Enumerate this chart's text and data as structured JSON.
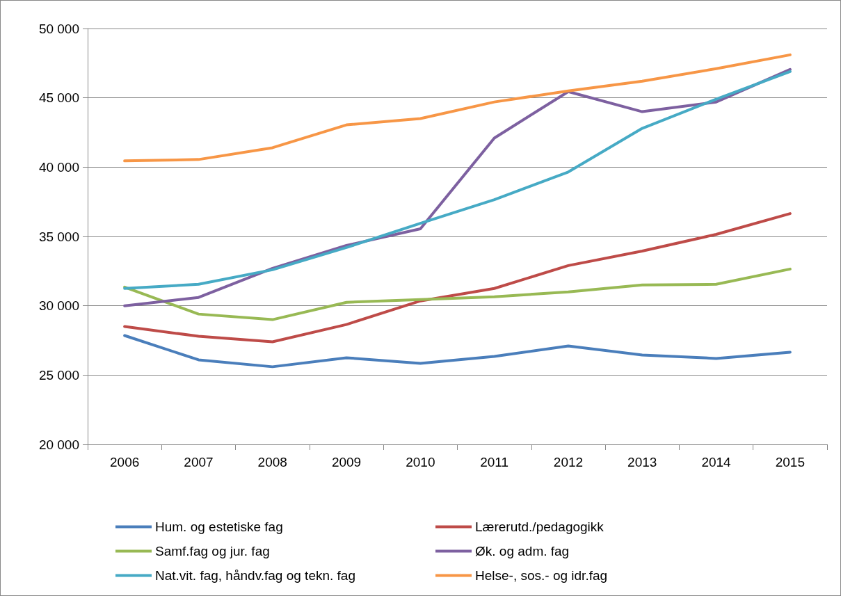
{
  "chart_data": {
    "type": "line",
    "categories": [
      "2006",
      "2007",
      "2008",
      "2009",
      "2010",
      "2011",
      "2012",
      "2013",
      "2014",
      "2015"
    ],
    "series": [
      {
        "name": "Hum. og estetiske fag",
        "color": "#4a7ebb",
        "values": [
          27850,
          26100,
          25600,
          26250,
          25850,
          26350,
          27100,
          26450,
          26200,
          26650
        ]
      },
      {
        "name": "Lærerutd./pedagogikk",
        "color": "#be4b48",
        "values": [
          28500,
          27800,
          27400,
          28650,
          30350,
          31250,
          32900,
          33950,
          35150,
          36650
        ]
      },
      {
        "name": "Samf.fag og jur. fag",
        "color": "#98b954",
        "values": [
          31350,
          29400,
          29000,
          30250,
          30450,
          30650,
          31000,
          31500,
          31550,
          32650
        ]
      },
      {
        "name": "Øk. og adm. fag",
        "color": "#7d60a0",
        "values": [
          30000,
          30600,
          32700,
          34350,
          35550,
          42100,
          45450,
          44000,
          44700,
          47050
        ]
      },
      {
        "name": "Nat.vit. fag, håndv.fag og tekn. fag",
        "color": "#46aac5",
        "values": [
          31250,
          31550,
          32600,
          34200,
          35950,
          37650,
          39650,
          42800,
          44900,
          46900
        ]
      },
      {
        "name": "Helse-, sos.- og idr.fag",
        "color": "#f79646",
        "values": [
          40450,
          40550,
          41400,
          43050,
          43500,
          44700,
          45500,
          46200,
          47100,
          48100
        ]
      }
    ],
    "ylim": [
      20000,
      50000
    ],
    "yticks": [
      {
        "value": 20000,
        "label": "20 000"
      },
      {
        "value": 25000,
        "label": "25 000"
      },
      {
        "value": 30000,
        "label": "30 000"
      },
      {
        "value": 35000,
        "label": "35 000"
      },
      {
        "value": 40000,
        "label": "40 000"
      },
      {
        "value": 45000,
        "label": "45 000"
      },
      {
        "value": 50000,
        "label": "50 000"
      }
    ],
    "grid": "y",
    "legend": "bottom",
    "marker": "none",
    "line_style": "solid"
  }
}
